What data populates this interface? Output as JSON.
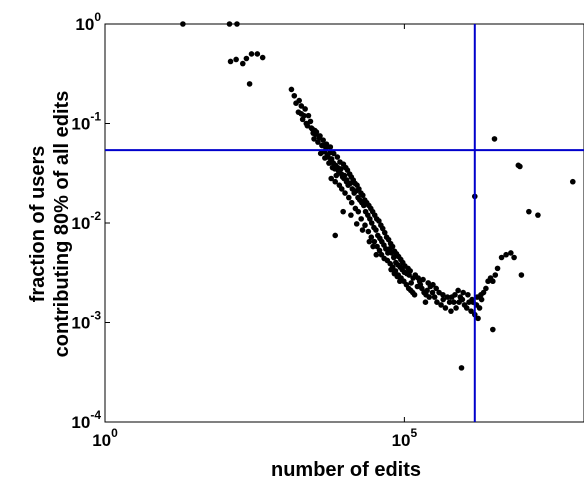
{
  "chart_data": {
    "type": "scatter",
    "title": "",
    "xlabel": "number of edits",
    "ylabel_lines": [
      "fraction of users",
      "contributing 80% of all edits"
    ],
    "xscale": "log",
    "yscale": "log",
    "xlim": [
      1,
      100000000
    ],
    "ylim": [
      0.0001,
      1
    ],
    "x_ticks": [
      {
        "value": 1,
        "base": "10",
        "exp": "0"
      },
      {
        "value": 100000,
        "base": "10",
        "exp": "5"
      }
    ],
    "y_ticks": [
      {
        "value": 0.0001,
        "base": "10",
        "exp": "-4"
      },
      {
        "value": 0.001,
        "base": "10",
        "exp": "-3"
      },
      {
        "value": 0.01,
        "base": "10",
        "exp": "-2"
      },
      {
        "value": 0.1,
        "base": "10",
        "exp": "-1"
      },
      {
        "value": 1,
        "base": "10",
        "exp": "0"
      }
    ],
    "grid": false,
    "legend": "none",
    "marker_color": "#000000",
    "reference_line_color": "#0000cc",
    "reference_lines": {
      "x": 1500000,
      "y": 0.054
    },
    "points": [
      [
        20,
        1
      ],
      [
        120,
        1
      ],
      [
        160,
        1
      ],
      [
        125,
        0.42
      ],
      [
        155,
        0.44
      ],
      [
        200,
        0.4
      ],
      [
        230,
        0.45
      ],
      [
        280,
        0.5
      ],
      [
        350,
        0.5
      ],
      [
        430,
        0.46
      ],
      [
        260,
        0.25
      ],
      [
        1300,
        0.22
      ],
      [
        1450,
        0.19
      ],
      [
        1550,
        0.16
      ],
      [
        1750,
        0.17
      ],
      [
        1900,
        0.15
      ],
      [
        2100,
        0.12
      ],
      [
        2200,
        0.14
      ],
      [
        2500,
        0.12
      ],
      [
        2300,
        0.1
      ],
      [
        2700,
        0.105
      ],
      [
        2800,
        0.09
      ],
      [
        3000,
        0.08
      ],
      [
        3300,
        0.078
      ],
      [
        3100,
        0.07
      ],
      [
        3600,
        0.065
      ],
      [
        3900,
        0.075
      ],
      [
        4200,
        0.06
      ],
      [
        4500,
        0.06
      ],
      [
        4900,
        0.057
      ],
      [
        5200,
        0.048
      ],
      [
        5700,
        0.051
      ],
      [
        6100,
        0.044
      ],
      [
        4700,
        0.045
      ],
      [
        5500,
        0.04
      ],
      [
        6300,
        0.036
      ],
      [
        6900,
        0.035
      ],
      [
        7300,
        0.03
      ],
      [
        8000,
        0.033
      ],
      [
        8700,
        0.035
      ],
      [
        9300,
        0.029
      ],
      [
        10000,
        0.03
      ],
      [
        10800,
        0.026
      ],
      [
        11500,
        0.024
      ],
      [
        12500,
        0.025
      ],
      [
        13500,
        0.022
      ],
      [
        14500,
        0.02
      ],
      [
        15600,
        0.021
      ],
      [
        16800,
        0.018
      ],
      [
        18000,
        0.017
      ],
      [
        19500,
        0.016
      ],
      [
        21000,
        0.015
      ],
      [
        22500,
        0.013
      ],
      [
        24500,
        0.012
      ],
      [
        26500,
        0.011
      ],
      [
        28500,
        0.01
      ],
      [
        31000,
        0.009
      ],
      [
        33500,
        0.0085
      ],
      [
        36000,
        0.0075
      ],
      [
        39000,
        0.007
      ],
      [
        42000,
        0.0065
      ],
      [
        45500,
        0.006
      ],
      [
        49000,
        0.0055
      ],
      [
        53000,
        0.005
      ],
      [
        57000,
        0.0055
      ],
      [
        61500,
        0.005
      ],
      [
        66500,
        0.0045
      ],
      [
        72000,
        0.004
      ],
      [
        78000,
        0.0038
      ],
      [
        85000,
        0.0036
      ],
      [
        92000,
        0.0034
      ],
      [
        100000,
        0.0032
      ],
      [
        110000,
        0.0031
      ],
      [
        120000,
        0.003
      ],
      [
        130000,
        0.0025
      ],
      [
        140000,
        0.0028
      ],
      [
        152000,
        0.003
      ],
      [
        165000,
        0.0023
      ],
      [
        180000,
        0.0026
      ],
      [
        196000,
        0.0022
      ],
      [
        213000,
        0.002
      ],
      [
        230000,
        0.0019
      ],
      [
        250000,
        0.0025
      ],
      [
        272000,
        0.0023
      ],
      [
        295000,
        0.002
      ],
      [
        320000,
        0.0018
      ],
      [
        350000,
        0.0016
      ],
      [
        380000,
        0.002
      ],
      [
        410000,
        0.0015
      ],
      [
        445000,
        0.0017
      ],
      [
        485000,
        0.0014
      ],
      [
        525000,
        0.0018
      ],
      [
        570000,
        0.0016
      ],
      [
        620000,
        0.0018
      ],
      [
        670000,
        0.0016
      ],
      [
        730000,
        0.0014
      ],
      [
        790000,
        0.0021
      ],
      [
        860000,
        0.0018
      ],
      [
        930000,
        0.0017
      ],
      [
        1010000,
        0.0015
      ],
      [
        1100000,
        0.0014
      ],
      [
        1200000,
        0.0016
      ],
      [
        1300000,
        0.0013
      ],
      [
        1400000,
        0.0016
      ],
      [
        1500000,
        0.0012
      ],
      [
        1650000,
        0.0018
      ],
      [
        1800000,
        0.0014
      ],
      [
        1950000,
        0.0017
      ],
      [
        2100000,
        0.002
      ],
      [
        2300000,
        0.0022
      ],
      [
        2500000,
        0.0026
      ],
      [
        2750000,
        0.0028
      ],
      [
        3000000,
        0.0026
      ],
      [
        3300000,
        0.003
      ],
      [
        3600000,
        0.0035
      ],
      [
        4200000,
        0.0045
      ],
      [
        5000000,
        0.0048
      ],
      [
        6000000,
        0.005
      ],
      [
        6800000,
        0.0045
      ],
      [
        9000000,
        0.003
      ],
      [
        3000000,
        0.00085
      ],
      [
        900000,
        0.00035
      ],
      [
        1500000,
        0.0185
      ],
      [
        3200000,
        0.07
      ],
      [
        8000000,
        0.038
      ],
      [
        8500000,
        0.037
      ],
      [
        12000000,
        0.013
      ],
      [
        17000000,
        0.012
      ],
      [
        65000000,
        0.026
      ],
      [
        3200,
        0.085
      ],
      [
        3800,
        0.072
      ],
      [
        4400,
        0.068
      ],
      [
        5000,
        0.062
      ],
      [
        5800,
        0.058
      ],
      [
        6600,
        0.05
      ],
      [
        7600,
        0.046
      ],
      [
        8400,
        0.041
      ],
      [
        9600,
        0.039
      ],
      [
        10500,
        0.036
      ],
      [
        11200,
        0.034
      ],
      [
        12200,
        0.031
      ],
      [
        13000,
        0.029
      ],
      [
        14000,
        0.027
      ],
      [
        15000,
        0.025
      ],
      [
        16200,
        0.024
      ],
      [
        17400,
        0.022
      ],
      [
        18800,
        0.02
      ],
      [
        20200,
        0.019
      ],
      [
        21800,
        0.017
      ],
      [
        23500,
        0.016
      ],
      [
        25500,
        0.015
      ],
      [
        27500,
        0.014
      ],
      [
        29500,
        0.013
      ],
      [
        32000,
        0.012
      ],
      [
        34500,
        0.011
      ],
      [
        37500,
        0.0105
      ],
      [
        40500,
        0.0095
      ],
      [
        43500,
        0.0088
      ],
      [
        47000,
        0.008
      ],
      [
        50500,
        0.0072
      ],
      [
        54500,
        0.0068
      ],
      [
        59000,
        0.0062
      ],
      [
        63500,
        0.0058
      ],
      [
        68500,
        0.0052
      ],
      [
        74000,
        0.0049
      ],
      [
        80000,
        0.0046
      ],
      [
        87000,
        0.0043
      ],
      [
        94000,
        0.004
      ],
      [
        102000,
        0.0037
      ],
      [
        6000,
        0.028
      ],
      [
        7000,
        0.026
      ],
      [
        8200,
        0.024
      ],
      [
        9000,
        0.022
      ],
      [
        10200,
        0.02
      ],
      [
        11800,
        0.018
      ],
      [
        13200,
        0.016
      ],
      [
        15200,
        0.014
      ],
      [
        17000,
        0.013
      ],
      [
        19000,
        0.011
      ],
      [
        22000,
        0.0095
      ],
      [
        25000,
        0.0082
      ],
      [
        28000,
        0.0072
      ],
      [
        31500,
        0.0065
      ],
      [
        35000,
        0.0058
      ],
      [
        38500,
        0.0053
      ],
      [
        41500,
        0.0048
      ],
      [
        46000,
        0.0044
      ],
      [
        52000,
        0.0042
      ],
      [
        58000,
        0.0039
      ],
      [
        64000,
        0.0036
      ],
      [
        71000,
        0.0033
      ],
      [
        79000,
        0.003
      ],
      [
        88000,
        0.0028
      ],
      [
        98000,
        0.0026
      ],
      [
        108000,
        0.0024
      ],
      [
        118000,
        0.0022
      ],
      [
        128000,
        0.0021
      ],
      [
        138000,
        0.002
      ],
      [
        148000,
        0.0019
      ],
      [
        4000,
        0.05
      ],
      [
        4600,
        0.052
      ],
      [
        5300,
        0.046
      ],
      [
        5900,
        0.042
      ],
      [
        6500,
        0.04
      ],
      [
        7100,
        0.038
      ],
      [
        7700,
        0.036
      ],
      [
        8900,
        0.031
      ],
      [
        9800,
        0.028
      ],
      [
        10900,
        0.027
      ],
      [
        2400,
        0.095
      ],
      [
        2900,
        0.088
      ],
      [
        3400,
        0.082
      ],
      [
        1700,
        0.13
      ],
      [
        1900,
        0.125
      ],
      [
        2000,
        0.11
      ],
      [
        7000,
        0.0075
      ],
      [
        9500,
        0.013
      ],
      [
        12800,
        0.012
      ],
      [
        16000,
        0.0098
      ],
      [
        20000,
        0.0085
      ],
      [
        26000,
        0.0065
      ],
      [
        30000,
        0.0058
      ],
      [
        34000,
        0.0048
      ],
      [
        60000,
        0.0034
      ],
      [
        68000,
        0.0031
      ],
      [
        76000,
        0.0029
      ],
      [
        84000,
        0.0026
      ],
      [
        115000,
        0.0035
      ],
      [
        125000,
        0.0033
      ],
      [
        170000,
        0.0028
      ],
      [
        185000,
        0.0024
      ],
      [
        205000,
        0.0027
      ],
      [
        225000,
        0.0016
      ],
      [
        240000,
        0.0021
      ],
      [
        260000,
        0.0018
      ],
      [
        300000,
        0.0024
      ],
      [
        340000,
        0.0022
      ],
      [
        440000,
        0.0019
      ],
      [
        600000,
        0.0013
      ],
      [
        700000,
        0.0019
      ],
      [
        820000,
        0.0016
      ],
      [
        960000,
        0.002
      ],
      [
        1150000,
        0.0019
      ],
      [
        1350000,
        0.0017
      ],
      [
        1600000,
        0.0015
      ],
      [
        1700000,
        0.0011
      ],
      [
        1900000,
        0.0019
      ]
    ]
  }
}
